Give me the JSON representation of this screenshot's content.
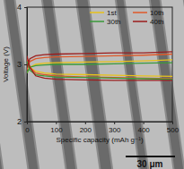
{
  "chart_data": {
    "type": "line",
    "x_label": "Specific capacity (mAh g⁻¹)",
    "y_label": "Voltage (V)",
    "scale_bar": "30 μm",
    "x": [
      0,
      10,
      30,
      60,
      100,
      200,
      300,
      400,
      500,
      null,
      0,
      10,
      30,
      60,
      100,
      200,
      300,
      400,
      500
    ],
    "series": [
      {
        "name": "1st",
        "color": "#e8c21a",
        "values": [
          3.05,
          2.95,
          2.88,
          2.85,
          2.83,
          2.82,
          2.81,
          2.8,
          2.79,
          null,
          2.85,
          2.95,
          3.0,
          3.02,
          3.03,
          3.04,
          3.05,
          3.06,
          3.08
        ]
      },
      {
        "name": "10th",
        "color": "#e05a2a",
        "values": [
          3.1,
          2.95,
          2.85,
          2.82,
          2.8,
          2.78,
          2.77,
          2.76,
          2.75,
          null,
          2.9,
          3.05,
          3.1,
          3.12,
          3.13,
          3.14,
          3.15,
          3.16,
          3.18
        ]
      },
      {
        "name": "30th",
        "color": "#3a9a3a",
        "values": [
          3.05,
          2.9,
          2.82,
          2.8,
          2.78,
          2.77,
          2.76,
          2.75,
          2.74,
          null,
          2.85,
          2.95,
          2.98,
          2.99,
          3.0,
          3.0,
          3.01,
          3.02,
          3.03
        ]
      },
      {
        "name": "40th",
        "color": "#9b1c1c",
        "values": [
          3.15,
          2.95,
          2.8,
          2.76,
          2.74,
          2.73,
          2.72,
          2.72,
          2.72,
          null,
          2.95,
          3.1,
          3.15,
          3.17,
          3.18,
          3.19,
          3.2,
          3.2,
          3.22
        ]
      }
    ],
    "xlim": [
      0,
      500
    ],
    "xticks": [
      0,
      100,
      200,
      300,
      400,
      500
    ],
    "ylim": [
      2,
      4
    ],
    "yticks": [
      2,
      3,
      4
    ],
    "legend": "top-right",
    "grid": false
  }
}
